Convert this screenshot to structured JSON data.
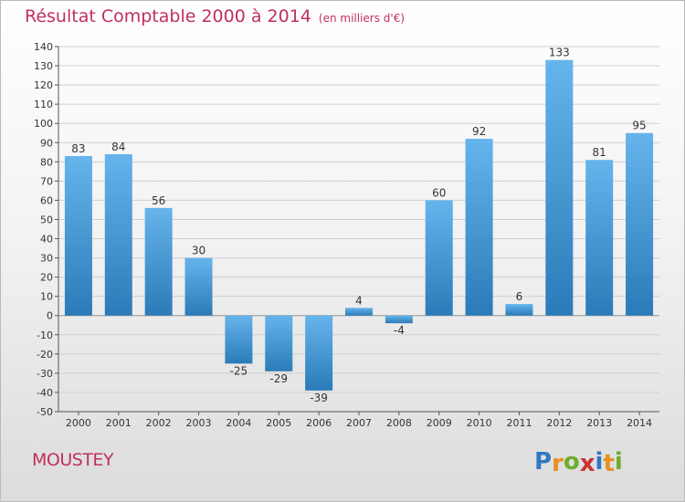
{
  "header": {
    "title": "Résultat Comptable 2000 à 2014",
    "unit": "(en milliers d'€)"
  },
  "footer": {
    "commune": "MOUSTEY",
    "logo_text": "Proxiti"
  },
  "colors": {
    "title": "#c0305a",
    "bar_light": "#66b4ec",
    "bar_dark": "#2a7bb8"
  },
  "chart_data": {
    "type": "bar",
    "title": "Résultat Comptable 2000 à 2014",
    "subtitle": "(en milliers d'€)",
    "categories": [
      "2000",
      "2001",
      "2002",
      "2003",
      "2004",
      "2005",
      "2006",
      "2007",
      "2008",
      "2009",
      "2010",
      "2011",
      "2012",
      "2013",
      "2014"
    ],
    "values": [
      83,
      84,
      56,
      30,
      -25,
      -29,
      -39,
      4,
      -4,
      60,
      92,
      6,
      133,
      81,
      95
    ],
    "ylim": [
      -50,
      140
    ],
    "yticks": [
      -50,
      -40,
      -30,
      -20,
      -10,
      0,
      10,
      20,
      30,
      40,
      50,
      60,
      70,
      80,
      90,
      100,
      110,
      120,
      130,
      140
    ],
    "grid": true,
    "legend": "none"
  }
}
